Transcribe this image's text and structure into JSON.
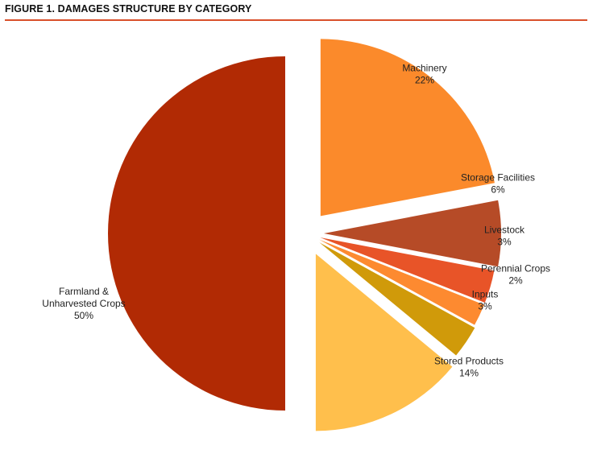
{
  "figure": {
    "title": "FIGURE 1. DAMAGES STRUCTURE BY CATEGORY",
    "rule_color": "#d9502b"
  },
  "chart_data": {
    "type": "pie",
    "title": "FIGURE 1. DAMAGES STRUCTURE BY CATEGORY",
    "start": "12 o'clock",
    "direction": "clockwise",
    "exploded": true,
    "slices": [
      {
        "label": "Machinery",
        "value": 22,
        "display": "22%",
        "color": "#fb8a2b"
      },
      {
        "label": "Storage Facilities",
        "value": 6,
        "display": "6%",
        "color": "#b64b27"
      },
      {
        "label": "Livestock",
        "value": 3,
        "display": "3%",
        "color": "#e85428"
      },
      {
        "label": "Perennial Crops",
        "value": 2,
        "display": "2%",
        "color": "#fd8a30"
      },
      {
        "label": "Inputs",
        "value": 3,
        "display": "3%",
        "color": "#d09a0a"
      },
      {
        "label": "Stored Products",
        "value": 14,
        "display": "14%",
        "color": "#ffbf4c"
      },
      {
        "label": "Farmland &\nUnharvested Crops",
        "value": 50,
        "display": "50%",
        "color": "#b12a04"
      }
    ]
  }
}
